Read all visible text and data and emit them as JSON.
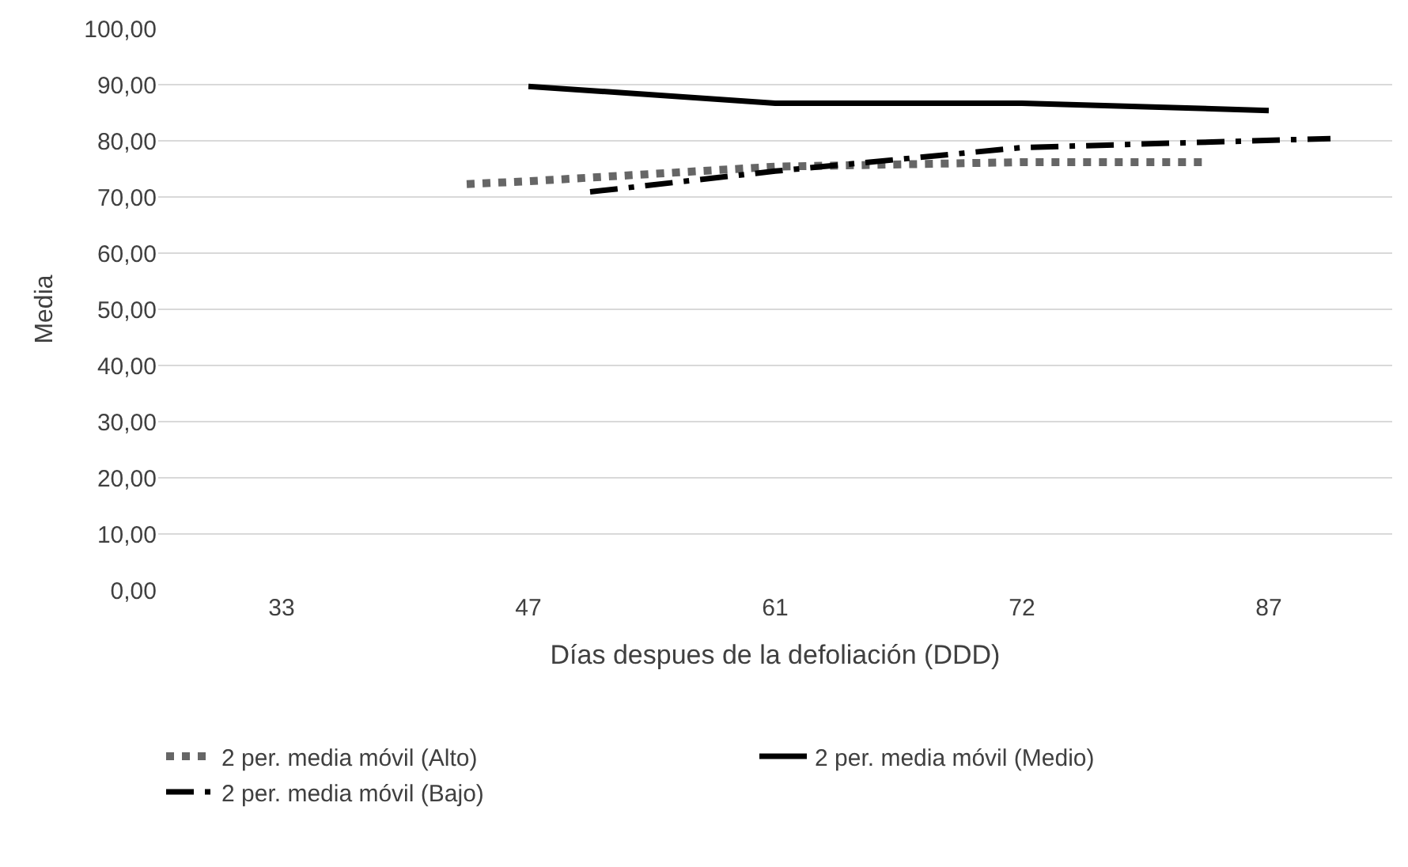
{
  "chart_data": {
    "type": "line",
    "xlabel": "Días despues de la defoliación (DDD)",
    "ylabel": "Media",
    "categories": [
      "33",
      null,
      null,
      null,
      "47",
      null,
      null,
      null,
      "61",
      null,
      null,
      null,
      "72",
      null,
      null,
      null,
      "87",
      null
    ],
    "ylim": [
      0,
      100
    ],
    "yticks": [
      {
        "value": 0,
        "label": "0,00"
      },
      {
        "value": 10,
        "label": "10,00"
      },
      {
        "value": 20,
        "label": "20,00"
      },
      {
        "value": 30,
        "label": "30,00"
      },
      {
        "value": 40,
        "label": "40,00"
      },
      {
        "value": 50,
        "label": "50,00"
      },
      {
        "value": 60,
        "label": "60,00"
      },
      {
        "value": 70,
        "label": "70,00"
      },
      {
        "value": 80,
        "label": "80,00"
      },
      {
        "value": 90,
        "label": "90,00"
      },
      {
        "value": 100,
        "label": "100,00"
      }
    ],
    "grid": "y",
    "legend": "bottom",
    "marker": "none",
    "series": [
      {
        "name": "2 per. media móvil (Alto)",
        "color": "#666666",
        "line_style": "dotted",
        "values": [
          null,
          null,
          null,
          72.3,
          72.8,
          null,
          null,
          null,
          75.4,
          null,
          null,
          null,
          76.2,
          null,
          null,
          76.2,
          null,
          null
        ]
      },
      {
        "name": "2 per. media móvil (Medio)",
        "color": "#000000",
        "line_style": "solid",
        "values": [
          null,
          null,
          null,
          null,
          89.7,
          null,
          null,
          null,
          86.7,
          null,
          null,
          null,
          86.7,
          null,
          null,
          null,
          85.4,
          null
        ]
      },
      {
        "name": "2 per. media móvil (Bajo)",
        "color": "#000000",
        "line_style": "dashdot",
        "values": [
          null,
          null,
          null,
          null,
          null,
          70.9,
          null,
          null,
          74.6,
          null,
          null,
          null,
          78.8,
          null,
          null,
          null,
          null,
          80.4
        ]
      }
    ]
  }
}
